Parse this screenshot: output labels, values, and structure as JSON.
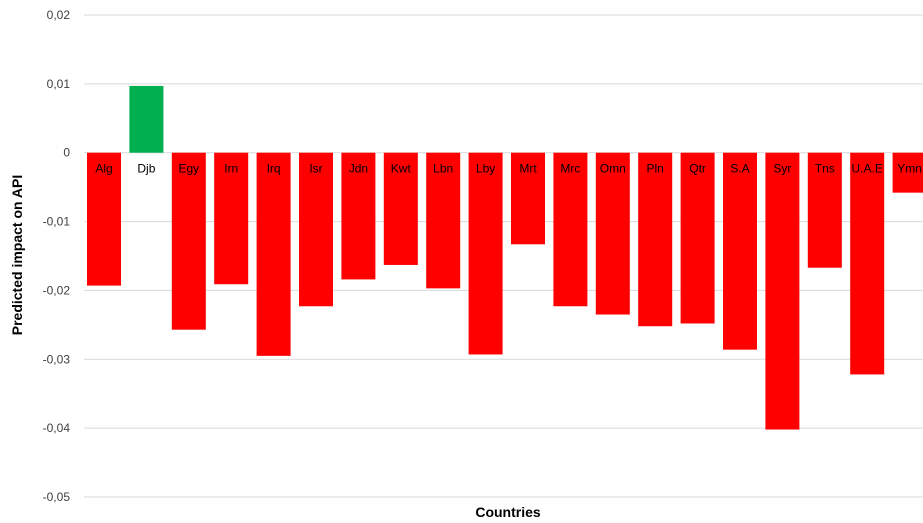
{
  "chart_data": {
    "type": "bar",
    "title": "",
    "xlabel": "Countries",
    "ylabel": "Predicted impact on  API",
    "ylim": [
      -0.05,
      0.02
    ],
    "yticks": [
      0.02,
      0.01,
      0,
      -0.01,
      -0.02,
      -0.03,
      -0.04,
      -0.05
    ],
    "ytick_labels": [
      "0,02",
      "0,01",
      "0",
      "-0,01",
      "-0,02",
      "-0,03",
      "-0,04",
      "-0,05"
    ],
    "grid": true,
    "legend": "none",
    "colors": {
      "positive": "#00b050",
      "negative": "#ff0000"
    },
    "categories": [
      "Alg",
      "Djb",
      "Egy",
      "Irn",
      "Irq",
      "Isr",
      "Jdn",
      "Kwt",
      "Lbn",
      "Lby",
      "Mrt",
      "Mrc",
      "Omn",
      "Pln",
      "Qtr",
      "S.A",
      "Syr",
      "Tns",
      "U.A.E",
      "Ymn"
    ],
    "values": [
      -0.0193,
      0.0097,
      -0.0257,
      -0.0191,
      -0.0295,
      -0.0223,
      -0.0184,
      -0.0163,
      -0.0197,
      -0.0293,
      -0.0133,
      -0.0223,
      -0.0235,
      -0.0252,
      -0.0248,
      -0.0286,
      -0.0402,
      -0.0167,
      -0.0322,
      -0.0058
    ]
  }
}
